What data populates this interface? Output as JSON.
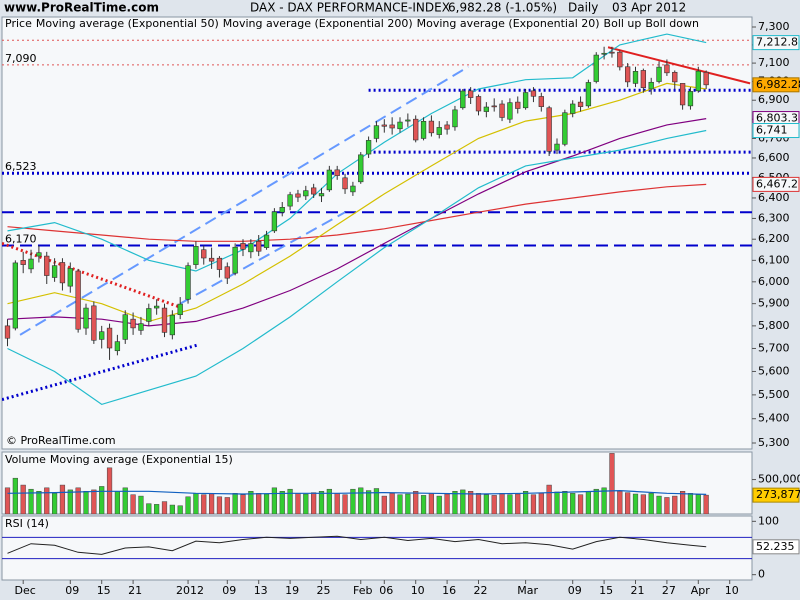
{
  "chart_data": [
    {
      "type": "candlestick",
      "site": "www.ProRealTime.com",
      "title": "DAX - DAX PERFORMANCE-INDEX",
      "quote": "6,982.28 (-1.05%)",
      "period": "Daily",
      "date": "03 Apr 2012",
      "copyright": "© ProRealTime.com",
      "name": "Price",
      "up_color": "#33cc33",
      "down_color": "#e05555",
      "last_color": "#ffaa00",
      "open": [
        5800,
        5790,
        6100,
        6060,
        6120,
        6120,
        6020,
        6090,
        5980,
        6050,
        5790,
        5890,
        5740,
        5790,
        5690,
        5740,
        5830,
        5780,
        5820,
        5880,
        5880,
        5760,
        5850,
        5920,
        6080,
        6150,
        6110,
        6110,
        6070,
        6040,
        6180,
        6140,
        6190,
        6160,
        6240,
        6330,
        6360,
        6420,
        6410,
        6450,
        6410,
        6440,
        6540,
        6500,
        6430,
        6480,
        6620,
        6700,
        6770,
        6770,
        6750,
        6790,
        6800,
        6700,
        6790,
        6720,
        6770,
        6760,
        6860,
        6950,
        6920,
        6840,
        6870,
        6880,
        6800,
        6890,
        6860,
        6950,
        6920,
        6860,
        6640,
        6670,
        6830,
        6890,
        6870,
        7000,
        7150,
        7160,
        7160,
        7080,
        6990,
        7060,
        6960,
        7000,
        7090,
        7050,
        6990,
        6870,
        6950,
        7050
      ],
      "high": [
        5830,
        6100,
        6140,
        6150,
        6170,
        6140,
        6110,
        6110,
        6090,
        6060,
        5900,
        5910,
        5800,
        5810,
        5760,
        5870,
        5860,
        5840,
        5900,
        5920,
        5900,
        5870,
        5930,
        6090,
        6190,
        6170,
        6160,
        6120,
        6090,
        6180,
        6200,
        6200,
        6220,
        6240,
        6350,
        6380,
        6430,
        6440,
        6460,
        6470,
        6450,
        6560,
        6560,
        6520,
        6480,
        6630,
        6710,
        6790,
        6800,
        6810,
        6810,
        6830,
        6820,
        6810,
        6820,
        6790,
        6790,
        6870,
        6960,
        6970,
        6930,
        6890,
        6910,
        6900,
        6910,
        6920,
        6960,
        6970,
        6940,
        6870,
        6700,
        6850,
        6900,
        6920,
        7010,
        7160,
        7190,
        7190,
        7170,
        7100,
        7080,
        7070,
        7020,
        7110,
        7120,
        7060,
        6990,
        6970,
        7080,
        7060
      ],
      "low": [
        5710,
        5780,
        6040,
        6040,
        6090,
        5990,
        6000,
        5960,
        5950,
        5770,
        5760,
        5720,
        5700,
        5650,
        5670,
        5720,
        5760,
        5760,
        5800,
        5850,
        5750,
        5740,
        5830,
        5900,
        6060,
        6080,
        6060,
        6020,
        5990,
        6030,
        6120,
        6110,
        6120,
        6150,
        6230,
        6310,
        6340,
        6380,
        6390,
        6400,
        6380,
        6430,
        6490,
        6420,
        6410,
        6470,
        6600,
        6680,
        6730,
        6720,
        6730,
        6760,
        6680,
        6690,
        6710,
        6700,
        6720,
        6740,
        6850,
        6880,
        6820,
        6810,
        6840,
        6790,
        6780,
        6830,
        6850,
        6890,
        6840,
        6610,
        6620,
        6660,
        6810,
        6840,
        6860,
        6990,
        7120,
        7130,
        7060,
        6970,
        6970,
        6940,
        6930,
        6990,
        7030,
        6960,
        6850,
        6850,
        6940,
        6960
      ],
      "close": [
        5745,
        6088,
        6080,
        6106,
        6136,
        6029,
        6075,
        5995,
        6062,
        5785,
        5880,
        5736,
        5774,
        5702,
        5730,
        5850,
        5791,
        5810,
        5878,
        5889,
        5771,
        5848,
        5898,
        6075,
        6166,
        6111,
        6096,
        6057,
        6017,
        6162,
        6152,
        6179,
        6143,
        6220,
        6332,
        6354,
        6416,
        6404,
        6436,
        6419,
        6422,
        6539,
        6511,
        6445,
        6459,
        6616,
        6690,
        6766,
        6763,
        6754,
        6785,
        6796,
        6692,
        6789,
        6729,
        6757,
        6748,
        6849,
        6949,
        6914,
        6843,
        6864,
        6865,
        6809,
        6887,
        6856,
        6941,
        6921,
        6866,
        6634,
        6671,
        6834,
        6880,
        6866,
        6995,
        7144,
        7154,
        7157,
        7079,
        6998,
        7055,
        6967,
        6996,
        7078,
        7047,
        6998,
        6875,
        6947,
        7056,
        6982.28
      ],
      "last_price": {
        "value": 6982.28,
        "label": "6,982.28"
      },
      "overlays": [
        {
          "name": "Moving average (Exponential 50)",
          "color": "#800080",
          "x": [
            0,
            6,
            12,
            18,
            24,
            30,
            36,
            42,
            48,
            54,
            60,
            66,
            72,
            78,
            84,
            89
          ],
          "values": [
            5830,
            5840,
            5830,
            5800,
            5820,
            5880,
            5960,
            6060,
            6180,
            6300,
            6420,
            6530,
            6610,
            6700,
            6770,
            6803.3
          ],
          "last": {
            "value": 6803.3,
            "label": "6,803.3"
          }
        },
        {
          "name": "Moving average (Exponential 200)",
          "color": "#dd3333",
          "x": [
            0,
            6,
            12,
            18,
            24,
            30,
            36,
            42,
            48,
            54,
            60,
            66,
            72,
            78,
            84,
            89
          ],
          "values": [
            6260,
            6240,
            6220,
            6200,
            6190,
            6190,
            6200,
            6220,
            6250,
            6290,
            6330,
            6370,
            6400,
            6430,
            6455,
            6467.2
          ],
          "last": {
            "value": 6467.2,
            "label": "6,467.2"
          }
        },
        {
          "name": "Moving average (Exponential 20)",
          "color": "#d4c000",
          "x": [
            0,
            6,
            12,
            18,
            24,
            30,
            36,
            42,
            48,
            54,
            60,
            66,
            72,
            78,
            84,
            89
          ],
          "values": [
            5900,
            5950,
            5900,
            5820,
            5880,
            5990,
            6120,
            6270,
            6420,
            6560,
            6700,
            6790,
            6830,
            6900,
            6990,
            6960
          ]
        },
        {
          "name": "Boll up",
          "color": "#22bbcc",
          "x": [
            0,
            6,
            12,
            18,
            24,
            30,
            36,
            42,
            48,
            54,
            60,
            66,
            72,
            78,
            84,
            89
          ],
          "values": [
            6240,
            6280,
            6200,
            6100,
            6050,
            6150,
            6300,
            6520,
            6680,
            6830,
            6960,
            7010,
            7020,
            7200,
            7260,
            7212.8
          ],
          "last": {
            "value": 7212.8,
            "label": "7,212.8"
          }
        },
        {
          "name": "Boll down",
          "color": "#22bbcc",
          "x": [
            0,
            6,
            12,
            18,
            24,
            30,
            36,
            42,
            48,
            54,
            60,
            66,
            72,
            78,
            84,
            89
          ],
          "values": [
            5700,
            5600,
            5460,
            5520,
            5580,
            5700,
            5840,
            6000,
            6160,
            6300,
            6450,
            6560,
            6600,
            6640,
            6700,
            6741
          ],
          "last": {
            "value": 6741,
            "label": "6,741"
          }
        }
      ],
      "levels": [
        {
          "value": 7226,
          "color": "#e05555",
          "style": "dotted"
        },
        {
          "value": 7090,
          "label": "7,090",
          "color": "#e05555",
          "style": "dotted"
        },
        {
          "value": 6953,
          "color": "#0000cc",
          "style": "dotted-bold",
          "from": 46
        },
        {
          "value": 6630,
          "color": "#0000cc",
          "style": "dotted-bold",
          "from": 46
        },
        {
          "value": 6523,
          "label": "6,523",
          "color": "#0000cc",
          "style": "dotted-bold"
        },
        {
          "value": 6330,
          "color": "#0000cc",
          "style": "dashed"
        },
        {
          "value": 6170,
          "label": "6,170",
          "color": "#0000cc",
          "style": "dashed"
        }
      ],
      "trendlines": [
        {
          "x": [
            -0.7,
            22
          ],
          "values": [
            6180,
            5884
          ],
          "color": "#e02020",
          "style": "dotted-bold"
        },
        {
          "x": [
            -0.7,
            24.2
          ],
          "values": [
            5480,
            5715
          ],
          "color": "#0000cc",
          "style": "dotted-bold"
        },
        {
          "x": [
            1.6,
            58.7
          ],
          "values": [
            5760,
            7080
          ],
          "color": "#6699ff",
          "style": "dashed"
        },
        {
          "x": [
            22,
            43
          ],
          "values": [
            5900,
            6330
          ],
          "color": "#6699ff",
          "style": "dashed"
        },
        {
          "x": [
            76.5,
            94.6
          ],
          "values": [
            7187,
            6990
          ],
          "color": "#e02020",
          "style": "solid"
        }
      ],
      "log_scale": true,
      "ylim": [
        5300,
        7300
      ],
      "xlim": [
        -0.7,
        94.84
      ],
      "yticks": [
        {
          "value": 5300,
          "label": "5,300"
        },
        {
          "value": 5400,
          "label": "5,400"
        },
        {
          "value": 5500,
          "label": "5,500"
        },
        {
          "value": 5600,
          "label": "5,600"
        },
        {
          "value": 5700,
          "label": "5,700"
        },
        {
          "value": 5800,
          "label": "5,800"
        },
        {
          "value": 5900,
          "label": "5,900"
        },
        {
          "value": 6000,
          "label": "6,000"
        },
        {
          "value": 6100,
          "label": "6,100"
        },
        {
          "value": 6200,
          "label": "6,200"
        },
        {
          "value": 6300,
          "label": "6,300"
        },
        {
          "value": 6400,
          "label": "6,400"
        },
        {
          "value": 6500,
          "label": "6,500"
        },
        {
          "value": 6600,
          "label": "6,600"
        },
        {
          "value": 6700,
          "label": "6,700"
        },
        {
          "value": 6800,
          "label": "6,800"
        },
        {
          "value": 6900,
          "label": "6,900"
        },
        {
          "value": 7000,
          "label": "7,000"
        },
        {
          "value": 7100,
          "label": "7,100"
        },
        {
          "value": 7200,
          "label": "7,200"
        },
        {
          "value": 7300,
          "label": "7,300"
        }
      ]
    },
    {
      "type": "bar",
      "name": "Volume",
      "color": "#cc3333",
      "values": [
        380000,
        520000,
        420000,
        360000,
        330000,
        380000,
        300000,
        420000,
        350000,
        380000,
        330000,
        350000,
        400000,
        670000,
        330000,
        380000,
        280000,
        260000,
        150000,
        140000,
        180000,
        130000,
        120000,
        250000,
        300000,
        280000,
        300000,
        250000,
        240000,
        300000,
        280000,
        330000,
        300000,
        290000,
        380000,
        330000,
        360000,
        300000,
        290000,
        310000,
        330000,
        360000,
        300000,
        280000,
        360000,
        380000,
        340000,
        370000,
        260000,
        300000,
        280000,
        290000,
        330000,
        270000,
        300000,
        260000,
        290000,
        330000,
        350000,
        330000,
        300000,
        280000,
        270000,
        300000,
        280000,
        290000,
        330000,
        280000,
        300000,
        420000,
        320000,
        330000,
        300000,
        280000,
        330000,
        360000,
        380000,
        880000,
        330000,
        310000,
        290000,
        280000,
        300000,
        260000,
        240000,
        260000,
        330000,
        300000,
        280000,
        273877
      ],
      "last": {
        "value": 273877,
        "label": "273,877"
      },
      "last_color": "#ffcc00",
      "overlays": [
        {
          "name": "Moving average (Exponential 15)",
          "color": "#1060c0",
          "x": [
            0,
            6,
            12,
            18,
            24,
            30,
            36,
            42,
            48,
            54,
            60,
            66,
            72,
            78,
            84,
            89
          ],
          "values": [
            300000,
            310000,
            330000,
            330000,
            300000,
            290000,
            300000,
            300000,
            310000,
            300000,
            290000,
            300000,
            320000,
            340000,
            300000,
            285000
          ]
        }
      ],
      "ylim": [
        0,
        900000
      ],
      "yticks": [
        {
          "value": 500000,
          "label": "500,000"
        }
      ],
      "xlim": [
        -0.7,
        94.84
      ]
    },
    {
      "type": "line",
      "name": "RSI (14)",
      "color": "#222222",
      "x": [
        0,
        3,
        6,
        9,
        12,
        15,
        18,
        21,
        24,
        27,
        30,
        33,
        36,
        39,
        42,
        45,
        48,
        51,
        54,
        57,
        60,
        63,
        66,
        69,
        72,
        75,
        78,
        81,
        84,
        87,
        89
      ],
      "values": [
        40,
        58,
        55,
        42,
        38,
        50,
        52,
        45,
        63,
        60,
        66,
        70,
        68,
        70,
        72,
        66,
        70,
        64,
        68,
        62,
        66,
        58,
        60,
        56,
        48,
        62,
        70,
        66,
        60,
        55,
        52.235
      ],
      "levels": [
        70,
        30
      ],
      "level_color": "#2020c0",
      "ylim": [
        -10,
        110
      ],
      "yticks": [
        0,
        100
      ],
      "xlim": [
        -0.7,
        94.84
      ],
      "xticks": [
        {
          "value": 2,
          "label": "Dec"
        },
        {
          "value": 8,
          "label": "09"
        },
        {
          "value": 12,
          "label": "15"
        },
        {
          "value": 16,
          "label": "21"
        },
        {
          "value": 23,
          "label": "2012"
        },
        {
          "value": 28,
          "label": "09"
        },
        {
          "value": 32,
          "label": "13"
        },
        {
          "value": 36,
          "label": "19"
        },
        {
          "value": 40,
          "label": "25"
        },
        {
          "value": 45,
          "label": "Feb"
        },
        {
          "value": 48,
          "label": "06"
        },
        {
          "value": 52,
          "label": "10"
        },
        {
          "value": 56,
          "label": "16"
        },
        {
          "value": 60,
          "label": "22"
        },
        {
          "value": 66,
          "label": "Mar"
        },
        {
          "value": 72,
          "label": "09"
        },
        {
          "value": 76,
          "label": "15"
        },
        {
          "value": 80,
          "label": "21"
        },
        {
          "value": 84,
          "label": "27"
        },
        {
          "value": 88,
          "label": "Apr"
        },
        {
          "value": 92,
          "label": "10"
        }
      ]
    }
  ]
}
